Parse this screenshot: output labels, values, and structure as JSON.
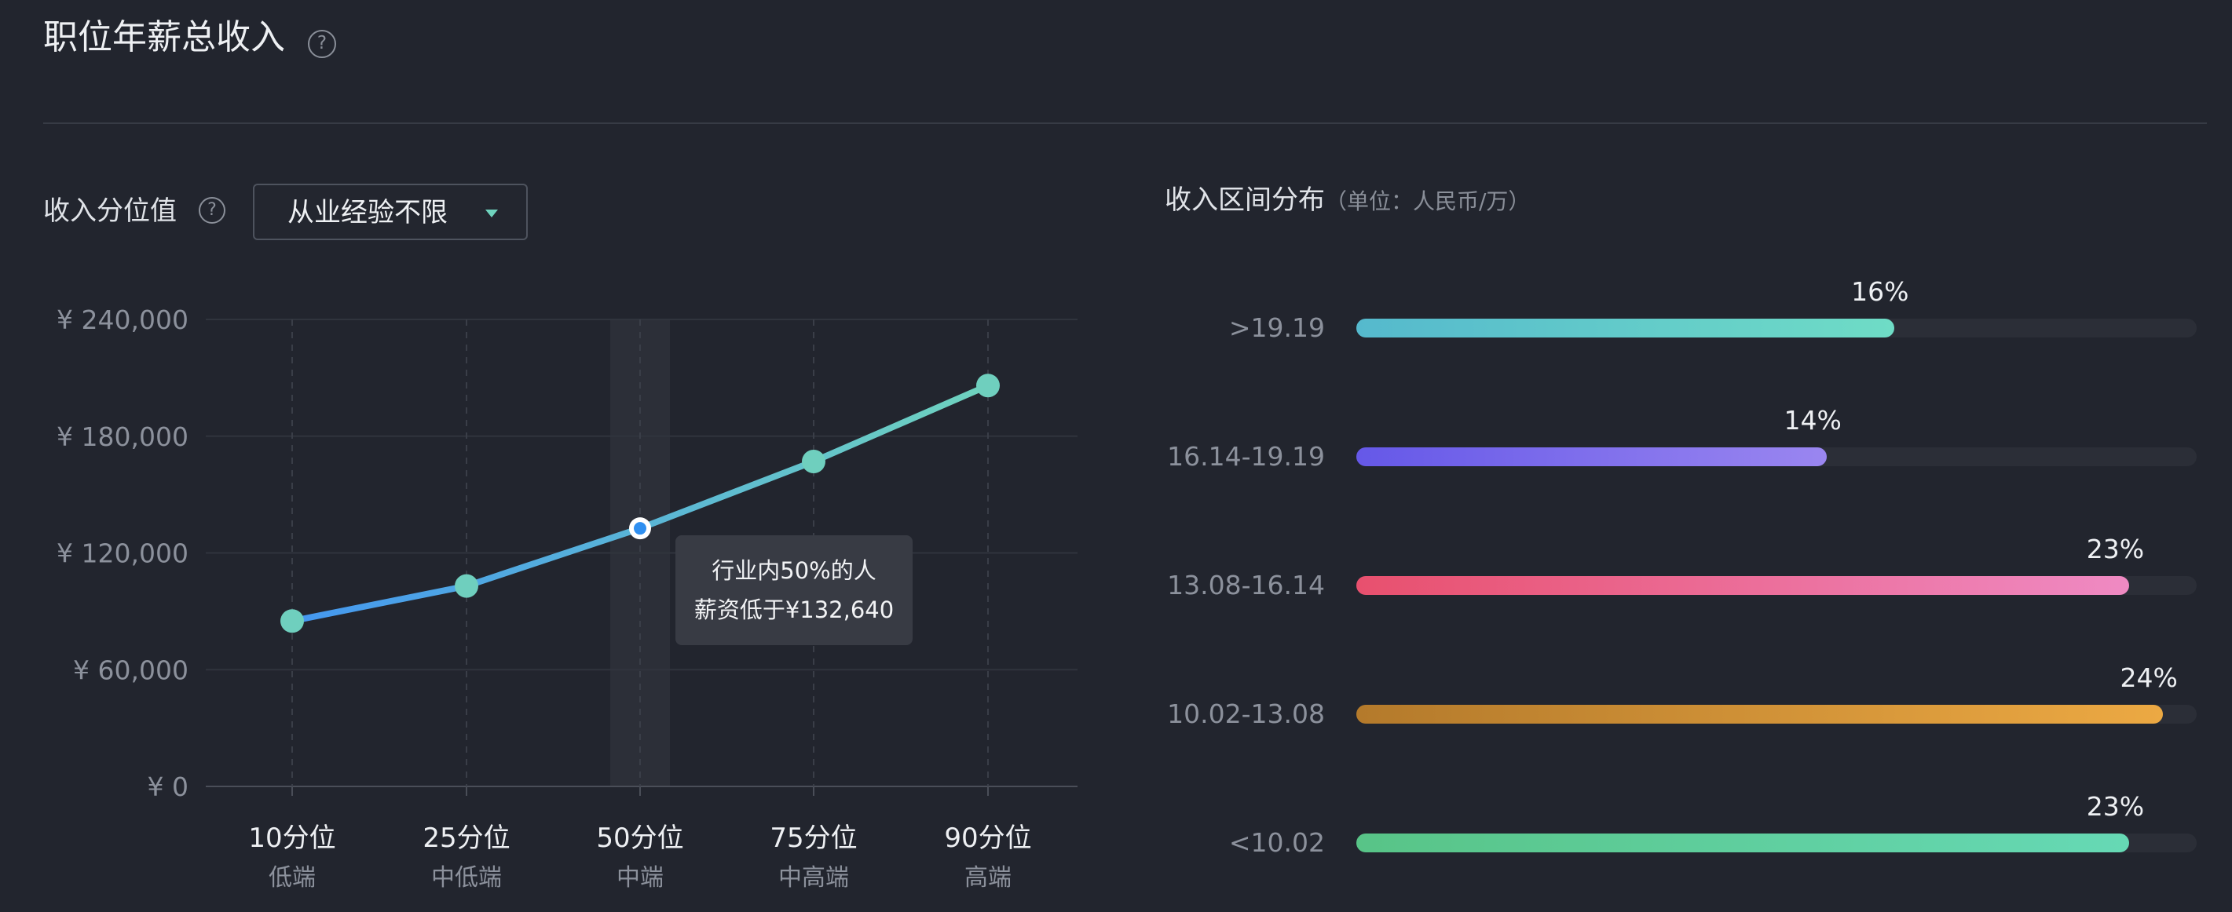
{
  "header": {
    "title": "职位年薪总收入",
    "help_icon": "?"
  },
  "percentile_section": {
    "label": "收入分位值",
    "help_icon": "?",
    "filter": {
      "selected": "从业经验不限"
    }
  },
  "distribution_section": {
    "title": "收入区间分布",
    "unit": "（单位：人民币/万）"
  },
  "tooltip": {
    "line1": "行业内50%的人",
    "line2": "薪资低于¥132,640"
  },
  "colors": {
    "background": "#22252e",
    "line_start": "#4497f0",
    "line_end": "#6fd3be",
    "point": "#6fcfbe",
    "highlight_point": "#2f8ff0"
  },
  "chart_data": [
    {
      "type": "line",
      "categories": [
        "10分位",
        "25分位",
        "50分位",
        "75分位",
        "90分位"
      ],
      "category_sublabels": [
        "低端",
        "中低端",
        "中端",
        "中高端",
        "高端"
      ],
      "values": [
        85000,
        103000,
        132640,
        167000,
        206000
      ],
      "yticks": [
        "¥ 0",
        "¥ 60,000",
        "¥ 120,000",
        "¥ 180,000",
        "¥ 240,000"
      ],
      "ylim": [
        0,
        240000
      ],
      "highlight_index": 2,
      "grid": true
    },
    {
      "type": "bar",
      "orientation": "horizontal",
      "categories": [
        ">19.19",
        "16.14-19.19",
        "13.08-16.14",
        "10.02-13.08",
        "<10.02"
      ],
      "values": [
        16,
        14,
        23,
        24,
        23
      ],
      "value_labels": [
        "16%",
        "14%",
        "23%",
        "24%",
        "23%"
      ],
      "colors": [
        [
          "#55b9cd",
          "#6fdcc6"
        ],
        [
          "#6558e8",
          "#9a86f0"
        ],
        [
          "#e8506e",
          "#ef8ac3"
        ],
        [
          "#b47a2b",
          "#eca943"
        ],
        [
          "#58c487",
          "#66d9b5"
        ]
      ],
      "xlim": [
        0,
        25
      ]
    }
  ]
}
